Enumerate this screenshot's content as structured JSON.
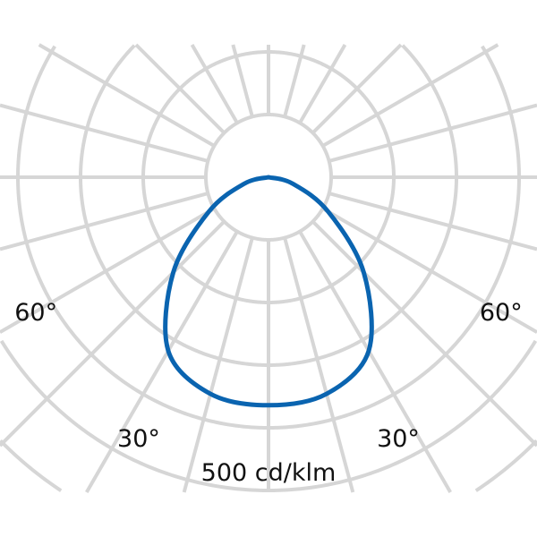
{
  "chart_data": {
    "type": "polar-line",
    "unit_label": "500 cd/klm",
    "angle_labels": [
      {
        "text": "60°",
        "angle": -60
      },
      {
        "text": "60°",
        "angle": 60
      },
      {
        "text": "30°",
        "angle": -30
      },
      {
        "text": "30°",
        "angle": 30
      }
    ],
    "ring_step": 100,
    "ring_count": 5,
    "spoke_step_deg": 15,
    "grid": true,
    "series": [
      {
        "color": "#0a64b0",
        "angles": [
          -90,
          -75,
          -60,
          -45,
          -30,
          -15,
          0,
          15,
          30,
          45,
          60,
          75,
          90
        ],
        "values": [
          0,
          40,
          110,
          215,
          320,
          358,
          364,
          358,
          320,
          215,
          110,
          40,
          0
        ]
      }
    ],
    "colors": {
      "grid": "#d6d6d6",
      "text": "#111111"
    }
  }
}
